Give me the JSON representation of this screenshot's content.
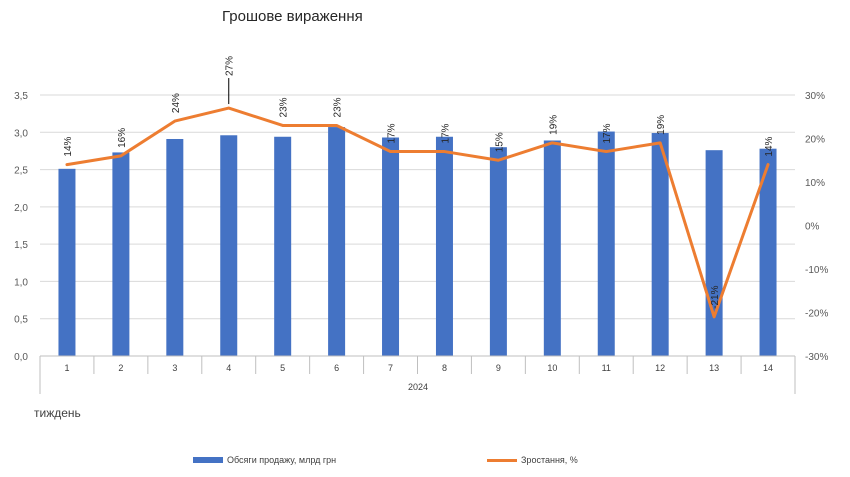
{
  "chart_data": {
    "type": "bar",
    "title": "Грошове вираження",
    "x_group_label": "2024",
    "x_unit_label": "тиждень",
    "categories": [
      "1",
      "2",
      "3",
      "4",
      "5",
      "6",
      "7",
      "8",
      "9",
      "10",
      "11",
      "12",
      "13",
      "14"
    ],
    "series": [
      {
        "name": "Обсяги продажу, млрд грн",
        "type": "bar",
        "axis": "left",
        "color": "#4472C4",
        "values": [
          2.51,
          2.73,
          2.91,
          2.96,
          2.94,
          3.07,
          2.93,
          2.94,
          2.8,
          2.89,
          3.01,
          2.99,
          2.76,
          2.78
        ]
      },
      {
        "name": "Зростання, %",
        "type": "line",
        "axis": "right",
        "color": "#ED7D31",
        "values": [
          14,
          16,
          24,
          27,
          23,
          23,
          17,
          17,
          15,
          19,
          17,
          19,
          -21,
          14
        ],
        "data_labels": [
          "14%",
          "16%",
          "24%",
          "27%",
          "23%",
          "23%",
          "17%",
          "17%",
          "15%",
          "19%",
          "17%",
          "19%",
          "-21%",
          "14%"
        ]
      }
    ],
    "y_left": {
      "min": 0,
      "max": 3.5,
      "step": 0.5,
      "tick_labels": [
        "0,0",
        "0,5",
        "1,0",
        "1,5",
        "2,0",
        "2,5",
        "3,0",
        "3,5"
      ]
    },
    "y_right": {
      "min": -30,
      "max": 30,
      "step": 10,
      "tick_labels": [
        "-30%",
        "-20%",
        "-10%",
        "0%",
        "10%",
        "20%",
        "30%"
      ]
    },
    "grid": true,
    "legend_position": "bottom"
  }
}
